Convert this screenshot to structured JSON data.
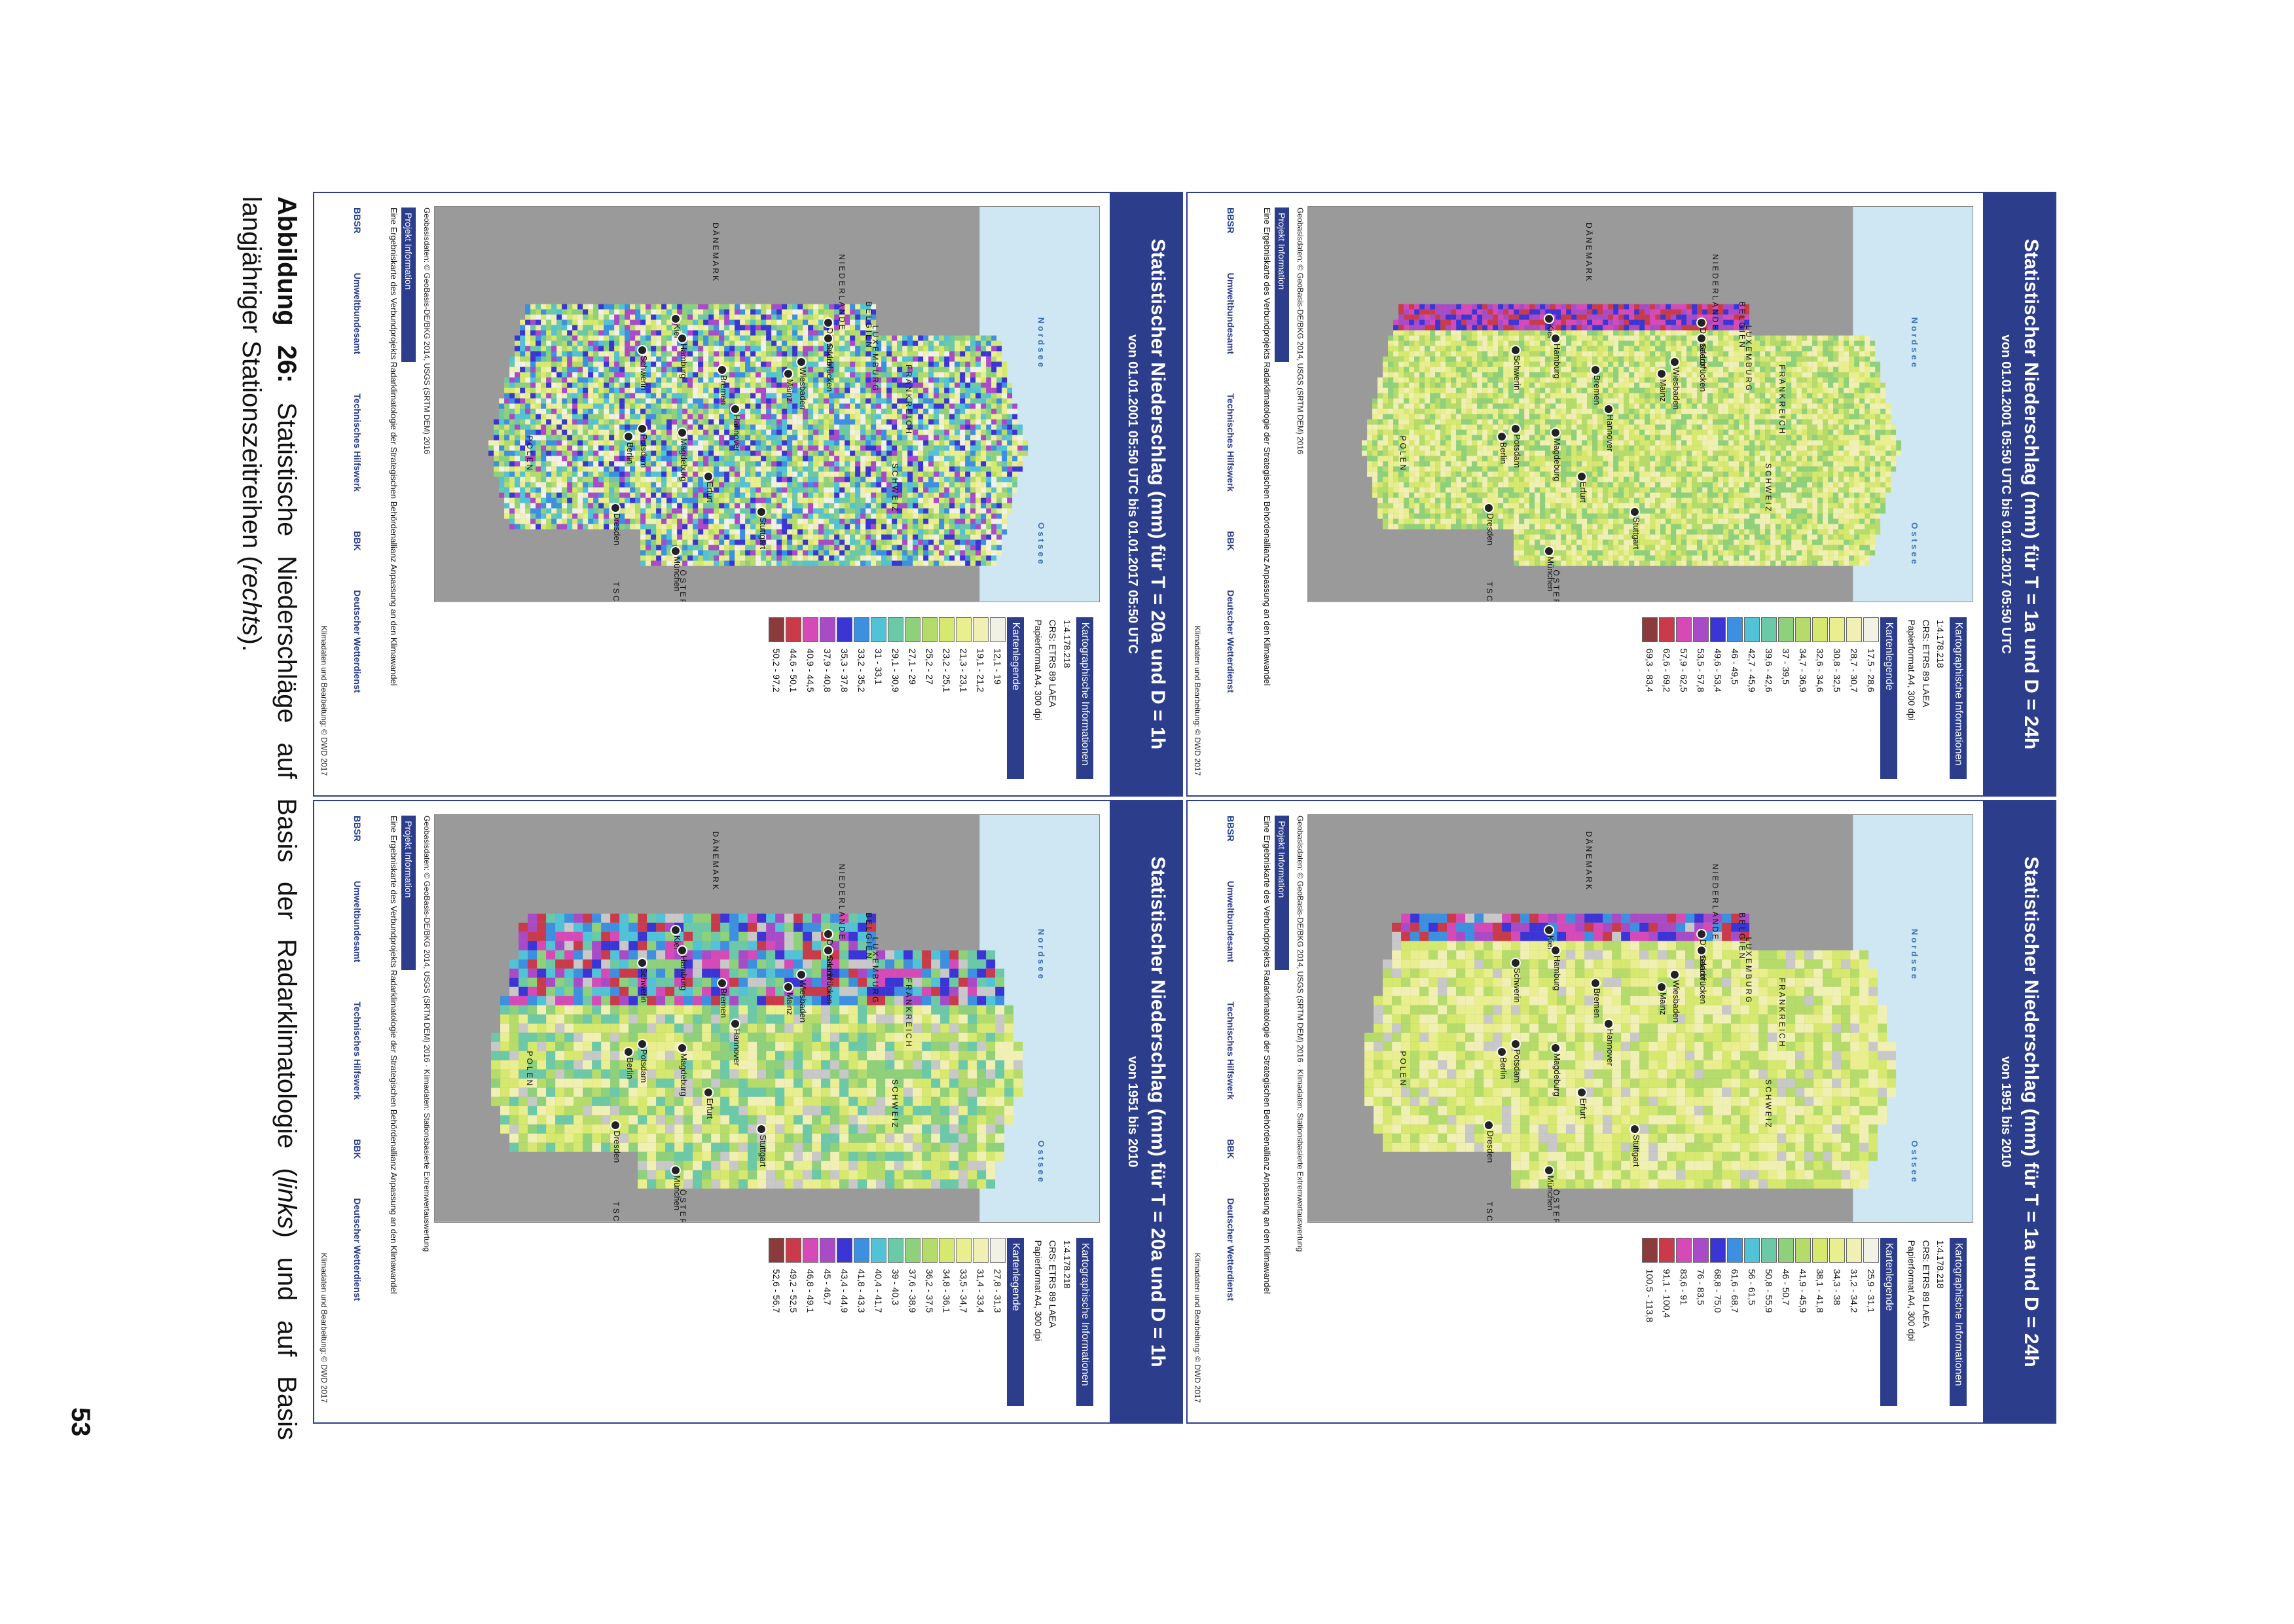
{
  "caption": {
    "label": "Abbildung 26:",
    "text": " Statistische Niederschläge auf Basis der Radarklimatologie (",
    "links": "links",
    "mid": ") und auf Basis langjähriger Stationszeitreihen (",
    "rechts": "rechts",
    "end": ")."
  },
  "page_number": "53",
  "panels": [
    {
      "title": "Statistischer Niederschlag (mm) für T = 1a und D = 24h",
      "subtitle": "von 01.01.2001 05:50 UTC bis 01.01.2017 05:50 UTC",
      "legend_title": "Kartenlegende",
      "legend": [
        "17,5 - 28,6",
        "28,7 - 30,7",
        "30,8 - 32,5",
        "32,6 - 34,6",
        "34,7 - 36,9",
        "37 - 39,5",
        "39,6 - 42,6",
        "42,7 - 45,9",
        "46 - 49,5",
        "49,6 - 53,4",
        "53,5 - 57,8",
        "57,9 - 62,5",
        "62,6 - 69,2",
        "69,3 - 83,4"
      ],
      "geo_source": "Geobasisdaten: © GeoBasis-DE/BKG 2014, USGS (SRTM DEM) 2016",
      "credit": "Klimadaten und Bearbeitung: © DWD 2017"
    },
    {
      "title": "Statistischer Niederschlag (mm) für T = 1a und D = 24h",
      "subtitle": "von 1951 bis 2010",
      "legend_title": "Kartenlegende",
      "legend": [
        "25,9 - 31,1",
        "31,2 - 34,2",
        "34,3 - 38",
        "38,1 - 41,8",
        "41,9 - 45,9",
        "46 - 50,7",
        "50,8 - 55,9",
        "56 - 61,5",
        "61,6 - 68,7",
        "68,8 - 75,0",
        "76 - 83,5",
        "83,6 - 91",
        "91,1 - 100,4",
        "100,5 - 113,8"
      ],
      "geo_source": "Geobasisdaten: © GeoBasis-DE/BKG 2014, USGS (SRTM DEM) 2016 · Klimadaten: Stationsbasierte Extremwertauswertung",
      "credit": "Klimadaten und Bearbeitung: © DWD 2017"
    },
    {
      "title": "Statistischer Niederschlag (mm) für T = 20a und D = 1h",
      "subtitle": "von 01.01.2001 05:50 UTC bis 01.01.2017 05:50 UTC",
      "legend_title": "Kartenlegende",
      "legend": [
        "12,1 - 19",
        "19,1 - 21,2",
        "21,3 - 23,1",
        "23,2 - 25,1",
        "25,2 - 27",
        "27,1 - 29",
        "29,1 - 30,9",
        "31 - 33,1",
        "33,2 - 35,2",
        "35,3 - 37,8",
        "37,9 - 40,8",
        "40,9 - 44,5",
        "44,6 - 50,1",
        "50,2 - 97,2"
      ],
      "geo_source": "Geobasisdaten: © GeoBasis-DE/BKG 2014, USGS (SRTM DEM) 2016",
      "credit": "Klimadaten und Bearbeitung: © DWD 2017"
    },
    {
      "title": "Statistischer Niederschlag (mm) für T = 20a und D = 1h",
      "subtitle": "von 1951 bis 2010",
      "legend_title": "Kartenlegende",
      "legend": [
        "27,8 - 31,3",
        "31,4 - 33,4",
        "33,5 - 34,7",
        "34,8 - 36,1",
        "36,2 - 37,5",
        "37,6 - 38,9",
        "39 - 40,3",
        "40,4 - 41,7",
        "41,8 - 43,3",
        "43,4 - 44,9",
        "45 - 46,7",
        "46,8 - 49,1",
        "49,2 - 52,5",
        "52,6 - 56,7"
      ],
      "geo_source": "Geobasisdaten: © GeoBasis-DE/BKG 2014, USGS (SRTM DEM) 2016 · Klimadaten: Stationsbasierte Extremwertauswertung",
      "credit": "Klimadaten und Bearbeitung: © DWD 2017"
    }
  ],
  "common": {
    "info_title": "Kartographische Informationen",
    "scale": "1:4.178.218",
    "crs": "CRS: ETRS 89 LAEA",
    "paper": "Papierformat A4, 300 dpi",
    "project_title": "Projekt Information",
    "project_text": "Eine Ergebniskarte des Verbundprojekts Radarklimatologie der Strategischen Behördenallianz Anpassung an den Klimawandel",
    "sea_north": "Nordsee",
    "sea_east": "Ostsee",
    "logos": [
      "BBSR",
      "Umweltbundesamt",
      "Technisches Hilfswerk",
      "BBK",
      "Deutscher Wetterdienst"
    ],
    "cities": [
      "Kiel",
      "Hamburg",
      "Schwerin",
      "Bremen",
      "Hannover",
      "Berlin",
      "Potsdam",
      "Magdeburg",
      "Düsseldorf",
      "Erfurt",
      "Dresden",
      "Wiesbaden",
      "Mainz",
      "Saarbrücken",
      "Stuttgart",
      "München"
    ],
    "countries": [
      "DÄNEMARK",
      "NIEDERLANDE",
      "BELGIEN",
      "LUXEMBURG",
      "FRANKREICH",
      "SCHWEIZ",
      "ÖSTERREICH",
      "TSCHECHIEN",
      "POLEN"
    ]
  },
  "colors": {
    "banner": "#2c3d8c",
    "legend_colors": [
      "#f2f1e6",
      "#f1f0b4",
      "#e9ee8f",
      "#d6e96e",
      "#b5dc6a",
      "#8fd17a",
      "#6cc9a8",
      "#52c2d6",
      "#3d8fe0",
      "#3b35d6",
      "#a94bc7",
      "#d54ab7",
      "#c93a4a",
      "#8b3b3b"
    ]
  }
}
